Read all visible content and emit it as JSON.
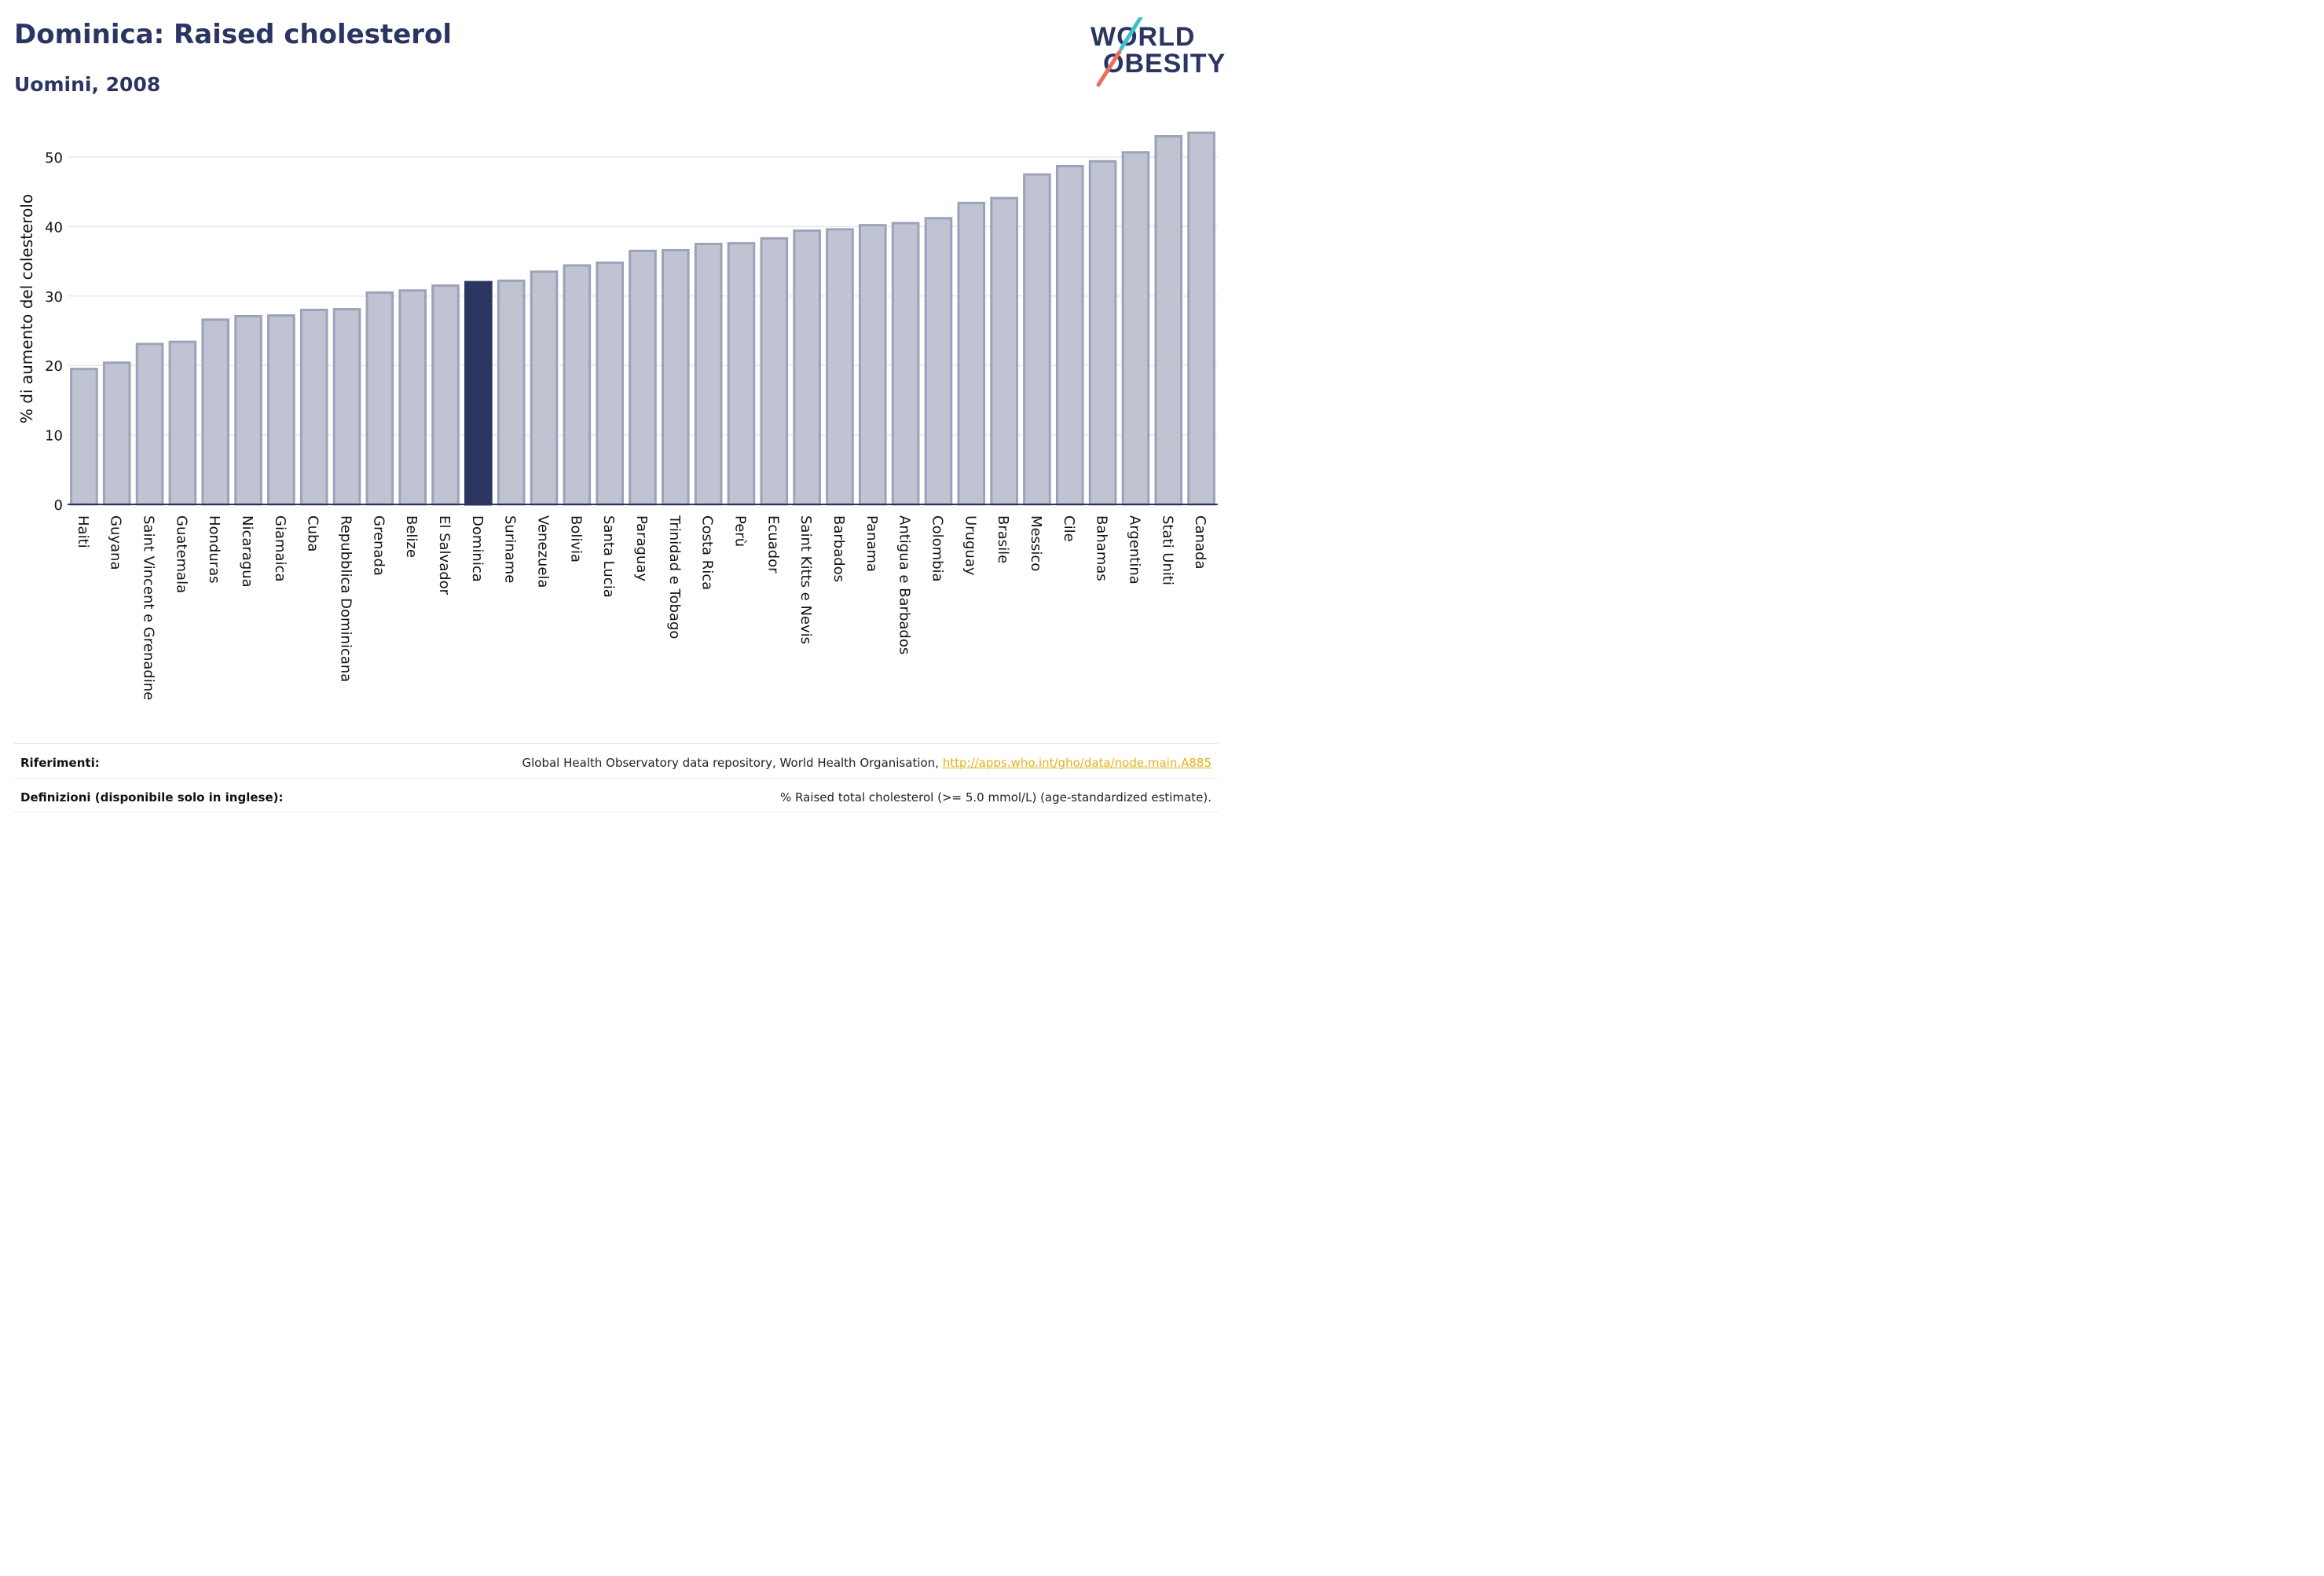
{
  "header": {
    "title": "Dominica: Raised cholesterol",
    "subtitle": "Uomini, 2008"
  },
  "logo": {
    "line1": "WORLD",
    "line2": "OBESITY",
    "accent_colors": [
      "#3ec1c8",
      "#e8705c"
    ]
  },
  "chart_data": {
    "type": "bar",
    "title": "Dominica: Raised cholesterol",
    "subtitle": "Uomini, 2008",
    "xlabel": "",
    "ylabel": "% di aumento del colesterolo",
    "ylim": [
      0,
      55
    ],
    "yticks": [
      0,
      10,
      20,
      30,
      40,
      50
    ],
    "grid": true,
    "highlight": "Dominica",
    "colors": {
      "bar": "#c0c4d2",
      "bar_edge": "#9ca2b8",
      "highlight": "#2b3561",
      "axis": "#2b3561",
      "grid": "#e5e7ee"
    },
    "categories": [
      "Haiti",
      "Guyana",
      "Saint Vincent e Grenadine",
      "Guatemala",
      "Honduras",
      "Nicaragua",
      "Giamaica",
      "Cuba",
      "Repubblica Dominicana",
      "Grenada",
      "Belize",
      "El Salvador",
      "Dominica",
      "Suriname",
      "Venezuela",
      "Bolivia",
      "Santa Lucia",
      "Paraguay",
      "Trinidad e Tobago",
      "Costa Rica",
      "Perù",
      "Ecuador",
      "Saint Kitts e Nevis",
      "Barbados",
      "Panama",
      "Antigua e Barbados",
      "Colombia",
      "Uruguay",
      "Brasile",
      "Messico",
      "Cile",
      "Bahamas",
      "Argentina",
      "Stati Uniti",
      "Canada"
    ],
    "values": [
      19.5,
      20.4,
      23.1,
      23.4,
      26.6,
      27.1,
      27.2,
      28.0,
      28.1,
      30.5,
      30.8,
      31.5,
      32.0,
      32.2,
      33.5,
      34.4,
      34.8,
      36.5,
      36.6,
      37.5,
      37.6,
      38.3,
      39.4,
      39.6,
      40.2,
      40.5,
      41.2,
      43.4,
      44.1,
      47.5,
      48.7,
      49.4,
      50.7,
      53.0,
      53.5
    ]
  },
  "footer": {
    "references_label": "Riferimenti:",
    "references_text": "Global Health Observatory data repository, World Health Organisation, ",
    "references_link": "http://apps.who.int/gho/data/node.main.A885",
    "definitions_label": "Definizioni (disponibile solo in inglese):",
    "definitions_text": "% Raised total cholesterol (>= 5.0 mmol/L) (age-standardized estimate)."
  }
}
